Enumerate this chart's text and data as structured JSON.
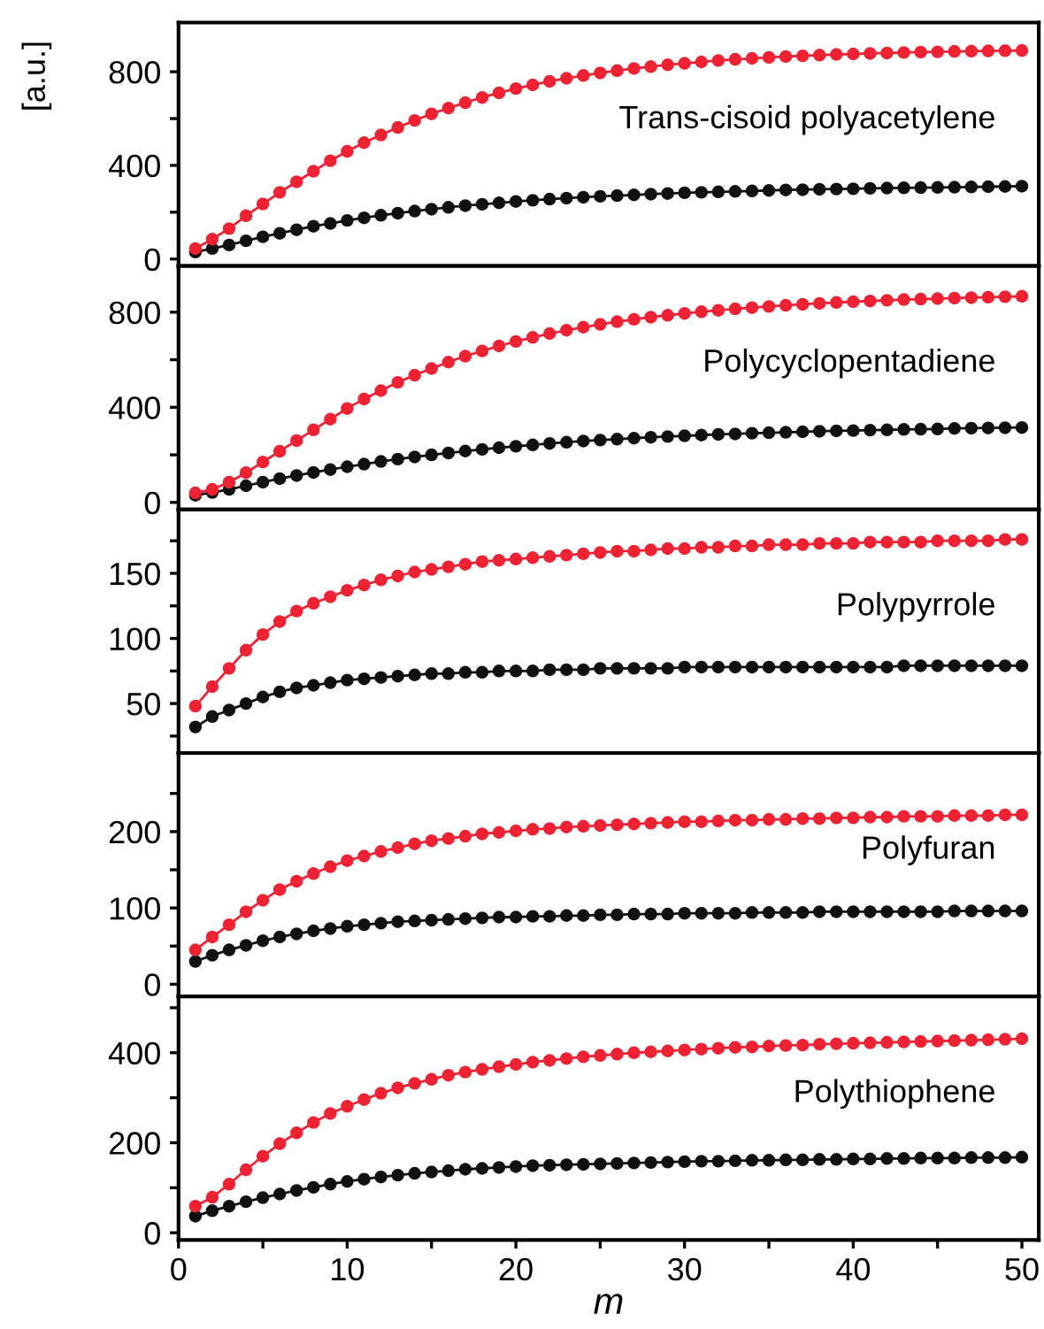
{
  "chart_data": [
    {
      "type": "line",
      "ylabel": "[a.u.]",
      "annotations": [
        "Trans-cisoid polyacetylene"
      ],
      "marker": "circle",
      "tick_labels": "y",
      "xlim": [
        0,
        51
      ],
      "xticks": [
        0,
        {
          "value": 5,
          "label": null
        },
        10,
        {
          "value": 15,
          "label": null
        },
        20,
        {
          "value": 25,
          "label": null
        },
        30,
        {
          "value": 35,
          "label": null
        },
        40,
        {
          "value": 45,
          "label": null
        },
        50
      ],
      "ylim": [
        -30,
        1010
      ],
      "yticks": [
        0,
        {
          "value": 200,
          "label": null
        },
        400,
        {
          "value": 600,
          "label": null
        },
        800
      ],
      "x": [
        1,
        2,
        3,
        4,
        5,
        6,
        7,
        8,
        9,
        10,
        11,
        12,
        13,
        14,
        15,
        16,
        17,
        18,
        19,
        20,
        21,
        22,
        23,
        24,
        25,
        26,
        27,
        28,
        29,
        30,
        31,
        32,
        33,
        34,
        35,
        36,
        37,
        38,
        39,
        40,
        41,
        42,
        43,
        44,
        45,
        46,
        47,
        48,
        49,
        50
      ],
      "series": [
        {
          "color": "#ee2233",
          "values": [
            45,
            85,
            130,
            185,
            235,
            285,
            330,
            375,
            420,
            460,
            497,
            530,
            562,
            592,
            620,
            645,
            668,
            690,
            710,
            728,
            744,
            759,
            772,
            784,
            795,
            805,
            814,
            822,
            830,
            836,
            842,
            848,
            853,
            857,
            861,
            865,
            868,
            871,
            874,
            876,
            878,
            880,
            882,
            884,
            885,
            887,
            888,
            889,
            890,
            891
          ]
        },
        {
          "color": "#111111",
          "values": [
            30,
            45,
            60,
            78,
            95,
            110,
            125,
            140,
            152,
            165,
            176,
            187,
            196,
            205,
            213,
            221,
            228,
            234,
            240,
            246,
            251,
            256,
            260,
            264,
            268,
            271,
            274,
            277,
            280,
            283,
            285,
            287,
            289,
            291,
            293,
            295,
            296,
            298,
            299,
            300,
            302,
            303,
            304,
            305,
            306,
            307,
            308,
            309,
            310,
            311
          ]
        }
      ]
    },
    {
      "type": "line",
      "annotations": [
        "Polycyclopentadiene"
      ],
      "marker": "circle",
      "tick_labels": "y",
      "xlim": [
        0,
        51
      ],
      "xticks": [
        0,
        {
          "value": 5,
          "label": null
        },
        10,
        {
          "value": 15,
          "label": null
        },
        20,
        {
          "value": 25,
          "label": null
        },
        30,
        {
          "value": 35,
          "label": null
        },
        40,
        {
          "value": 45,
          "label": null
        },
        50
      ],
      "ylim": [
        -30,
        994
      ],
      "yticks": [
        0,
        {
          "value": 200,
          "label": null
        },
        400,
        {
          "value": 600,
          "label": null
        },
        800
      ],
      "x": [
        1,
        2,
        3,
        4,
        5,
        6,
        7,
        8,
        9,
        10,
        11,
        12,
        13,
        14,
        15,
        16,
        17,
        18,
        19,
        20,
        21,
        22,
        23,
        24,
        25,
        26,
        27,
        28,
        29,
        30,
        31,
        32,
        33,
        34,
        35,
        36,
        37,
        38,
        39,
        40,
        41,
        42,
        43,
        44,
        45,
        46,
        47,
        48,
        49,
        50
      ],
      "series": [
        {
          "color": "#ee2233",
          "values": [
            40,
            55,
            85,
            125,
            170,
            215,
            260,
            305,
            350,
            395,
            435,
            470,
            505,
            535,
            563,
            590,
            615,
            637,
            658,
            677,
            694,
            710,
            724,
            737,
            749,
            760,
            770,
            779,
            787,
            795,
            802,
            808,
            814,
            819,
            824,
            829,
            833,
            837,
            841,
            844,
            847,
            850,
            853,
            855,
            857,
            859,
            861,
            863,
            865,
            867
          ]
        },
        {
          "color": "#111111",
          "values": [
            30,
            42,
            55,
            70,
            85,
            100,
            113,
            126,
            138,
            150,
            161,
            172,
            182,
            191,
            200,
            208,
            216,
            223,
            230,
            236,
            242,
            248,
            253,
            258,
            262,
            266,
            270,
            274,
            277,
            280,
            283,
            286,
            288,
            291,
            293,
            295,
            297,
            299,
            301,
            302,
            304,
            305,
            307,
            308,
            309,
            311,
            312,
            313,
            314,
            315
          ]
        }
      ]
    },
    {
      "type": "line",
      "annotations": [
        "Polypyrrole"
      ],
      "marker": "circle",
      "tick_labels": "y",
      "xlim": [
        0,
        51
      ],
      "xticks": [
        0,
        {
          "value": 5,
          "label": null
        },
        10,
        {
          "value": 15,
          "label": null
        },
        20,
        {
          "value": 25,
          "label": null
        },
        30,
        {
          "value": 35,
          "label": null
        },
        40,
        {
          "value": 45,
          "label": null
        },
        50
      ],
      "ylim": [
        12,
        199
      ],
      "yticks": [
        {
          "value": 25,
          "label": null
        },
        50,
        {
          "value": 75,
          "label": null
        },
        100,
        {
          "value": 125,
          "label": null
        },
        150,
        {
          "value": 175,
          "label": null
        }
      ],
      "x": [
        1,
        2,
        3,
        4,
        5,
        6,
        7,
        8,
        9,
        10,
        11,
        12,
        13,
        14,
        15,
        16,
        17,
        18,
        19,
        20,
        21,
        22,
        23,
        24,
        25,
        26,
        27,
        28,
        29,
        30,
        31,
        32,
        33,
        34,
        35,
        36,
        37,
        38,
        39,
        40,
        41,
        42,
        43,
        44,
        45,
        46,
        47,
        48,
        49,
        50
      ],
      "series": [
        {
          "color": "#ee2233",
          "values": [
            48,
            63,
            77,
            91,
            103,
            113,
            121,
            127,
            132,
            137,
            141,
            145,
            148,
            151,
            153,
            155,
            157,
            159,
            160,
            161,
            162,
            163,
            164,
            165,
            166,
            167,
            167,
            168,
            169,
            169,
            170,
            170,
            171,
            171,
            172,
            172,
            172,
            173,
            173,
            173,
            174,
            174,
            174,
            174,
            175,
            175,
            175,
            175,
            176,
            176
          ]
        },
        {
          "color": "#111111",
          "values": [
            32,
            40,
            45,
            50,
            55,
            59,
            62,
            64,
            66,
            68,
            69,
            70,
            71,
            72,
            73,
            73,
            74,
            74,
            75,
            75,
            75,
            76,
            76,
            76,
            77,
            77,
            77,
            77,
            77,
            78,
            78,
            78,
            78,
            78,
            78,
            78,
            78,
            78,
            78,
            78,
            78,
            78,
            79,
            79,
            79,
            79,
            79,
            79,
            79,
            79
          ]
        }
      ]
    },
    {
      "type": "line",
      "annotations": [
        "Polyfuran"
      ],
      "marker": "circle",
      "tick_labels": "y",
      "xlim": [
        0,
        51
      ],
      "xticks": [
        0,
        {
          "value": 5,
          "label": null
        },
        10,
        {
          "value": 15,
          "label": null
        },
        20,
        {
          "value": 25,
          "label": null
        },
        30,
        {
          "value": 35,
          "label": null
        },
        40,
        {
          "value": 45,
          "label": null
        },
        50
      ],
      "ylim": [
        -16,
        303
      ],
      "yticks": [
        0,
        {
          "value": 50,
          "label": null
        },
        100,
        {
          "value": 150,
          "label": null
        },
        200,
        {
          "value": 250,
          "label": null
        }
      ],
      "x": [
        1,
        2,
        3,
        4,
        5,
        6,
        7,
        8,
        9,
        10,
        11,
        12,
        13,
        14,
        15,
        16,
        17,
        18,
        19,
        20,
        21,
        22,
        23,
        24,
        25,
        26,
        27,
        28,
        29,
        30,
        31,
        32,
        33,
        34,
        35,
        36,
        37,
        38,
        39,
        40,
        41,
        42,
        43,
        44,
        45,
        46,
        47,
        48,
        49,
        50
      ],
      "series": [
        {
          "color": "#ee2233",
          "values": [
            45,
            62,
            78,
            95,
            110,
            124,
            135,
            145,
            154,
            162,
            168,
            174,
            179,
            184,
            188,
            191,
            194,
            197,
            199,
            201,
            203,
            204,
            206,
            207,
            208,
            209,
            210,
            211,
            212,
            213,
            213,
            214,
            215,
            215,
            216,
            216,
            217,
            217,
            218,
            218,
            219,
            219,
            220,
            220,
            220,
            221,
            221,
            221,
            222,
            222
          ]
        },
        {
          "color": "#111111",
          "values": [
            30,
            38,
            45,
            51,
            57,
            62,
            66,
            70,
            73,
            76,
            78,
            80,
            82,
            83,
            84,
            85,
            86,
            87,
            88,
            88,
            89,
            89,
            90,
            90,
            91,
            91,
            92,
            92,
            92,
            93,
            93,
            93,
            93,
            94,
            94,
            94,
            94,
            95,
            95,
            95,
            95,
            95,
            95,
            95,
            95,
            96,
            96,
            96,
            96,
            96
          ]
        }
      ]
    },
    {
      "type": "line",
      "xlabel": "m",
      "annotations": [
        "Polythiophene"
      ],
      "marker": "circle",
      "xlim": [
        0,
        51
      ],
      "xticks": [
        0,
        {
          "value": 5,
          "label": null
        },
        10,
        {
          "value": 15,
          "label": null
        },
        20,
        {
          "value": 25,
          "label": null
        },
        30,
        {
          "value": 35,
          "label": null
        },
        40,
        {
          "value": 45,
          "label": null
        },
        50
      ],
      "ylim": [
        -16,
        525
      ],
      "yticks": [
        0,
        {
          "value": 100,
          "label": null
        },
        200,
        {
          "value": 300,
          "label": null
        },
        400,
        {
          "value": 500,
          "label": null
        }
      ],
      "x": [
        1,
        2,
        3,
        4,
        5,
        6,
        7,
        8,
        9,
        10,
        11,
        12,
        13,
        14,
        15,
        16,
        17,
        18,
        19,
        20,
        21,
        22,
        23,
        24,
        25,
        26,
        27,
        28,
        29,
        30,
        31,
        32,
        33,
        34,
        35,
        36,
        37,
        38,
        39,
        40,
        41,
        42,
        43,
        44,
        45,
        46,
        47,
        48,
        49,
        50
      ],
      "series": [
        {
          "color": "#ee2233",
          "values": [
            59,
            79,
            108,
            140,
            170,
            198,
            222,
            245,
            265,
            281,
            296,
            310,
            322,
            332,
            341,
            350,
            357,
            363,
            369,
            374,
            379,
            383,
            387,
            391,
            394,
            397,
            400,
            402,
            404,
            406,
            408,
            410,
            412,
            413,
            415,
            416,
            417,
            419,
            420,
            421,
            422,
            423,
            424,
            425,
            426,
            427,
            428,
            429,
            430,
            431
          ]
        },
        {
          "color": "#111111",
          "values": [
            37,
            49,
            59,
            69,
            78,
            86,
            94,
            101,
            108,
            114,
            119,
            124,
            128,
            132,
            135,
            138,
            141,
            143,
            145,
            147,
            149,
            150,
            151,
            152,
            153,
            154,
            155,
            156,
            157,
            158,
            159,
            159,
            160,
            161,
            161,
            162,
            162,
            163,
            163,
            164,
            164,
            165,
            165,
            166,
            166,
            166,
            167,
            167,
            167,
            168
          ]
        }
      ]
    }
  ]
}
